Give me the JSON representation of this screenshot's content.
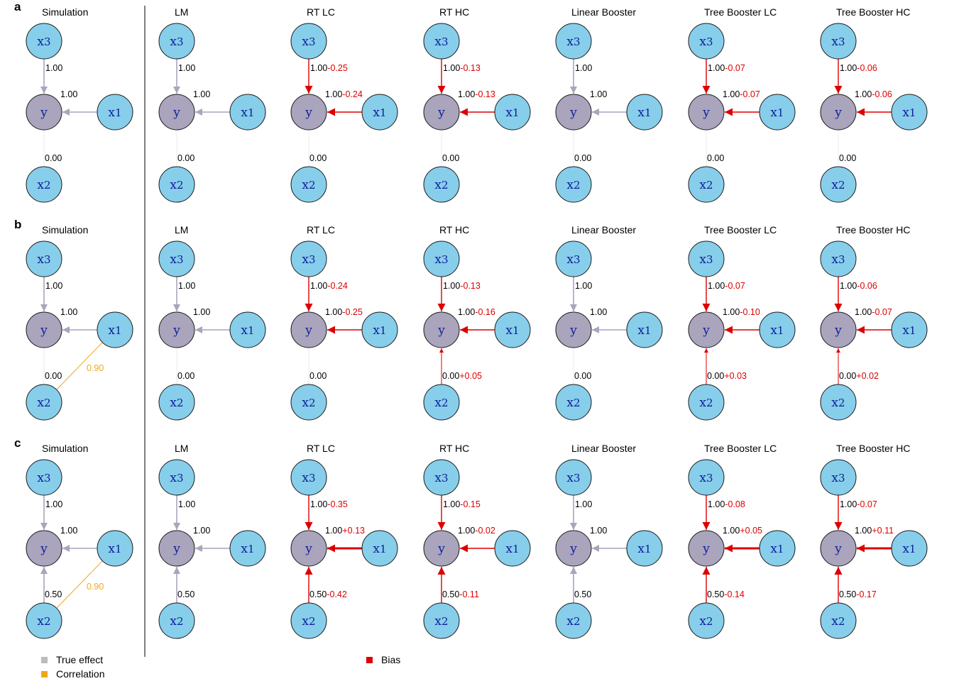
{
  "colors": {
    "true_effect": "#aaa4bc",
    "correlation": "#f0a81a",
    "bias": "#dd0000",
    "node_x": "#87ceeb",
    "node_y": "#aaa4bc",
    "node_label": "#10209a"
  },
  "columns": [
    "Simulation",
    "LM",
    "RT LC",
    "RT HC",
    "Linear Booster",
    "Tree Booster LC",
    "Tree Booster HC"
  ],
  "node_labels": {
    "x3": "x3",
    "x1": "x1",
    "x2": "x2",
    "y": "y"
  },
  "legend": {
    "true_effect": "True effect",
    "correlation": "Correlation",
    "bias": "Bias"
  },
  "panels": [
    {
      "letter": "a",
      "correlation": null,
      "cells": [
        {
          "x3": "1.00",
          "x1": "1.00",
          "x2": "0.00"
        },
        {
          "x3": "1.00",
          "x1": "1.00",
          "x2": "0.00"
        },
        {
          "x3": "1.00",
          "x3_bias": "-0.25",
          "x1": "1.00",
          "x1_bias": "-0.24",
          "x2": "0.00"
        },
        {
          "x3": "1.00",
          "x3_bias": "-0.13",
          "x1": "1.00",
          "x1_bias": "-0.13",
          "x2": "0.00"
        },
        {
          "x3": "1.00",
          "x1": "1.00",
          "x2": "0.00"
        },
        {
          "x3": "1.00",
          "x3_bias": "-0.07",
          "x1": "1.00",
          "x1_bias": "-0.07",
          "x2": "0.00"
        },
        {
          "x3": "1.00",
          "x3_bias": "-0.06",
          "x1": "1.00",
          "x1_bias": "-0.06",
          "x2": "0.00"
        }
      ]
    },
    {
      "letter": "b",
      "correlation": "0.90",
      "cells": [
        {
          "x3": "1.00",
          "x1": "1.00",
          "x2": "0.00"
        },
        {
          "x3": "1.00",
          "x1": "1.00",
          "x2": "0.00"
        },
        {
          "x3": "1.00",
          "x3_bias": "-0.24",
          "x1": "1.00",
          "x1_bias": "-0.25",
          "x2": "0.00"
        },
        {
          "x3": "1.00",
          "x3_bias": "-0.13",
          "x1": "1.00",
          "x1_bias": "-0.16",
          "x2": "0.00",
          "x2_bias": "+0.05"
        },
        {
          "x3": "1.00",
          "x1": "1.00",
          "x2": "0.00"
        },
        {
          "x3": "1.00",
          "x3_bias": "-0.07",
          "x1": "1.00",
          "x1_bias": "-0.10",
          "x2": "0.00",
          "x2_bias": "+0.03"
        },
        {
          "x3": "1.00",
          "x3_bias": "-0.06",
          "x1": "1.00",
          "x1_bias": "-0.07",
          "x2": "0.00",
          "x2_bias": "+0.02"
        }
      ]
    },
    {
      "letter": "c",
      "correlation": "0.90",
      "cells": [
        {
          "x3": "1.00",
          "x1": "1.00",
          "x2": "0.50"
        },
        {
          "x3": "1.00",
          "x1": "1.00",
          "x2": "0.50"
        },
        {
          "x3": "1.00",
          "x3_bias": "-0.35",
          "x1": "1.00",
          "x1_bias": "+0.13",
          "x2": "0.50",
          "x2_bias": "-0.42"
        },
        {
          "x3": "1.00",
          "x3_bias": "-0.15",
          "x1": "1.00",
          "x1_bias": "-0.02",
          "x2": "0.50",
          "x2_bias": "-0.11"
        },
        {
          "x3": "1.00",
          "x1": "1.00",
          "x2": "0.50"
        },
        {
          "x3": "1.00",
          "x3_bias": "-0.08",
          "x1": "1.00",
          "x1_bias": "+0.05",
          "x2": "0.50",
          "x2_bias": "-0.14"
        },
        {
          "x3": "1.00",
          "x3_bias": "-0.07",
          "x1": "1.00",
          "x1_bias": "+0.11",
          "x2": "0.50",
          "x2_bias": "-0.17"
        }
      ]
    }
  ]
}
